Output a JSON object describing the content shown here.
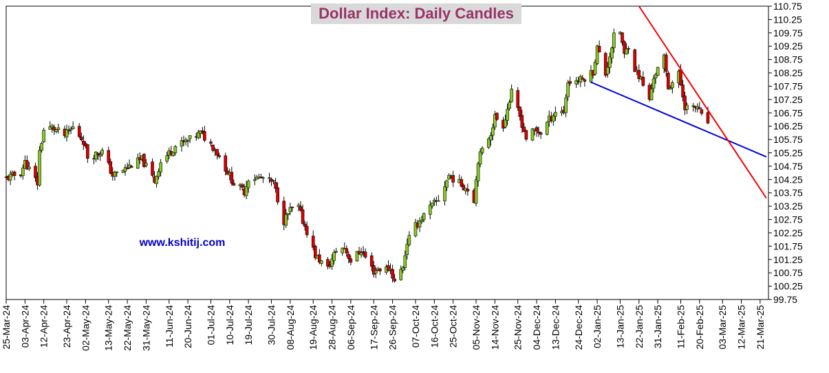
{
  "chart_data": {
    "type": "candlestick",
    "title": "Dollar Index: Daily Candles",
    "watermark": "www.kshitij.com",
    "ylim": [
      99.75,
      110.75
    ],
    "y_ticks": [
      "110.75",
      "110.25",
      "109.75",
      "109.25",
      "108.75",
      "108.25",
      "107.75",
      "107.25",
      "106.75",
      "106.25",
      "105.75",
      "105.25",
      "104.75",
      "104.25",
      "103.75",
      "103.25",
      "102.75",
      "102.25",
      "101.75",
      "101.25",
      "100.75",
      "100.25",
      "99.75"
    ],
    "x_start": "2024-03-25",
    "x_end": "2025-03-25",
    "x_ticks": [
      "25-Mar-24",
      "03-Apr-24",
      "12-Apr-24",
      "23-Apr-24",
      "02-May-24",
      "13-May-24",
      "22-May-24",
      "31-May-24",
      "11-Jun-24",
      "20-Jun-24",
      "01-Jul-24",
      "10-Jul-24",
      "19-Jul-24",
      "30-Jul-24",
      "08-Aug-24",
      "19-Aug-24",
      "28-Aug-24",
      "06-Sep-24",
      "17-Sep-24",
      "26-Sep-24",
      "07-Oct-24",
      "16-Oct-24",
      "25-Oct-24",
      "05-Nov-24",
      "14-Nov-24",
      "25-Nov-24",
      "04-Dec-24",
      "13-Dec-24",
      "24-Dec-24",
      "02-Jan-25",
      "13-Jan-25",
      "22-Jan-25",
      "31-Jan-25",
      "11-Feb-25",
      "20-Feb-25",
      "03-Mar-25",
      "12-Mar-25",
      "21-Mar-25"
    ],
    "colors": {
      "bullish": "#88cc22",
      "bearish": "#dd0000",
      "support_line": "#0000dd",
      "resistance_line": "#ee0000",
      "title_color": "#993366",
      "title_bg": "#d9d9d9",
      "watermark_color": "#0000cc"
    },
    "anchors": [
      [
        "2024-03-25",
        104.3
      ],
      [
        "2024-04-01",
        104.5
      ],
      [
        "2024-04-03",
        104.9
      ],
      [
        "2024-04-09",
        104.1
      ],
      [
        "2024-04-10",
        105.3
      ],
      [
        "2024-04-12",
        106.1
      ],
      [
        "2024-04-16",
        106.2
      ],
      [
        "2024-04-22",
        105.9
      ],
      [
        "2024-04-26",
        106.2
      ],
      [
        "2024-05-01",
        105.7
      ],
      [
        "2024-05-03",
        105.1
      ],
      [
        "2024-05-10",
        105.3
      ],
      [
        "2024-05-15",
        104.4
      ],
      [
        "2024-05-20",
        104.6
      ],
      [
        "2024-05-24",
        104.8
      ],
      [
        "2024-05-29",
        105.0
      ],
      [
        "2024-06-04",
        104.2
      ],
      [
        "2024-06-07",
        104.9
      ],
      [
        "2024-06-14",
        105.5
      ],
      [
        "2024-06-20",
        105.7
      ],
      [
        "2024-06-26",
        106.0
      ],
      [
        "2024-07-03",
        105.4
      ],
      [
        "2024-07-12",
        104.1
      ],
      [
        "2024-07-17",
        103.8
      ],
      [
        "2024-07-19",
        104.3
      ],
      [
        "2024-07-26",
        104.3
      ],
      [
        "2024-07-31",
        104.1
      ],
      [
        "2024-08-05",
        102.7
      ],
      [
        "2024-08-08",
        103.1
      ],
      [
        "2024-08-12",
        103.2
      ],
      [
        "2024-08-14",
        102.7
      ],
      [
        "2024-08-16",
        102.3
      ],
      [
        "2024-08-20",
        101.4
      ],
      [
        "2024-08-26",
        100.9
      ],
      [
        "2024-08-30",
        101.6
      ],
      [
        "2024-09-03",
        101.7
      ],
      [
        "2024-09-06",
        101.2
      ],
      [
        "2024-09-11",
        101.6
      ],
      [
        "2024-09-17",
        100.8
      ],
      [
        "2024-09-19",
        100.9
      ],
      [
        "2024-09-25",
        100.9
      ],
      [
        "2024-09-27",
        100.4
      ],
      [
        "2024-10-01",
        101.0
      ],
      [
        "2024-10-03",
        101.9
      ],
      [
        "2024-10-07",
        102.5
      ],
      [
        "2024-10-14",
        103.2
      ],
      [
        "2024-10-18",
        103.5
      ],
      [
        "2024-10-23",
        104.4
      ],
      [
        "2024-10-30",
        104.0
      ],
      [
        "2024-11-01",
        103.9
      ],
      [
        "2024-11-04",
        103.5
      ],
      [
        "2024-11-06",
        105.0
      ],
      [
        "2024-11-12",
        106.0
      ],
      [
        "2024-11-14",
        106.6
      ],
      [
        "2024-11-18",
        106.3
      ],
      [
        "2024-11-22",
        107.5
      ],
      [
        "2024-11-26",
        106.6
      ],
      [
        "2024-11-29",
        105.8
      ],
      [
        "2024-12-03",
        106.1
      ],
      [
        "2024-12-06",
        106.0
      ],
      [
        "2024-12-10",
        106.5
      ],
      [
        "2024-12-13",
        106.8
      ],
      [
        "2024-12-17",
        106.8
      ],
      [
        "2024-12-19",
        107.9
      ],
      [
        "2024-12-26",
        108.0
      ],
      [
        "2024-12-31",
        108.3
      ],
      [
        "2025-01-02",
        109.2
      ],
      [
        "2025-01-06",
        108.2
      ],
      [
        "2025-01-10",
        109.6
      ],
      [
        "2025-01-13",
        109.8
      ],
      [
        "2025-01-15",
        108.9
      ],
      [
        "2025-01-17",
        109.3
      ],
      [
        "2025-01-20",
        108.4
      ],
      [
        "2025-01-23",
        108.0
      ],
      [
        "2025-01-27",
        107.2
      ],
      [
        "2025-01-29",
        108.1
      ],
      [
        "2025-02-03",
        108.8
      ],
      [
        "2025-02-05",
        107.7
      ],
      [
        "2025-02-10",
        108.2
      ],
      [
        "2025-02-13",
        107.0
      ],
      [
        "2025-02-17",
        106.9
      ],
      [
        "2025-02-19",
        107.0
      ],
      [
        "2025-02-21",
        106.6
      ],
      [
        "2025-02-24",
        106.4
      ]
    ],
    "trendlines": [
      {
        "kind": "support",
        "from": [
          "2024-12-30",
          107.9
        ],
        "to": [
          "2025-03-24",
          105.1
        ]
      },
      {
        "kind": "resistance",
        "from": [
          "2025-01-22",
          110.75
        ],
        "to": [
          "2025-03-24",
          103.55
        ]
      }
    ]
  }
}
